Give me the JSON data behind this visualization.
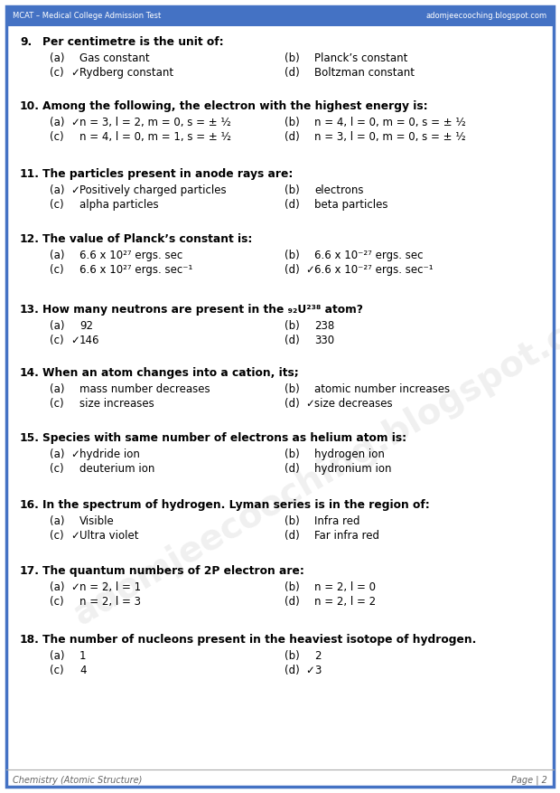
{
  "header_left": "MCAT – Medical College Admission Test",
  "header_right": "adomjeecooching.blogspot.com",
  "footer_left": "Chemistry (Atomic Structure)",
  "footer_right": "Page | 2",
  "bg_color": "#ffffff",
  "border_color": "#4472c4",
  "watermark": "adomjeecooching.blogspot.com",
  "questions": [
    {
      "num": "9.",
      "question": "Per centimetre is the unit of:",
      "options": [
        {
          "label": "(a)",
          "check": false,
          "text": "Gas constant"
        },
        {
          "label": "(b)",
          "check": false,
          "text": "Planck’s constant"
        },
        {
          "label": "(c)",
          "check": true,
          "text": "Rydberg constant"
        },
        {
          "label": "(d)",
          "check": false,
          "text": "Boltzman constant"
        }
      ]
    },
    {
      "num": "10.",
      "question": "Among the following, the electron with the highest energy is:",
      "options": [
        {
          "label": "(a)",
          "check": true,
          "text": "n = 3, l = 2, m = 0, s = ± ½"
        },
        {
          "label": "(b)",
          "check": false,
          "text": "n = 4, l = 0, m = 0, s = ± ½"
        },
        {
          "label": "(c)",
          "check": false,
          "text": "n = 4, l = 0, m = 1, s = ± ½"
        },
        {
          "label": "(d)",
          "check": false,
          "text": "n = 3, l = 0, m = 0, s = ± ½"
        }
      ]
    },
    {
      "num": "11.",
      "question": "The particles present in anode rays are:",
      "options": [
        {
          "label": "(a)",
          "check": true,
          "text": "Positively charged particles"
        },
        {
          "label": "(b)",
          "check": false,
          "text": "electrons"
        },
        {
          "label": "(c)",
          "check": false,
          "text": "alpha particles"
        },
        {
          "label": "(d)",
          "check": false,
          "text": "beta particles"
        }
      ]
    },
    {
      "num": "12.",
      "question": "The value of Planck’s constant is:",
      "options": [
        {
          "label": "(a)",
          "check": false,
          "text": "6.6 x 10²⁷ ergs. sec"
        },
        {
          "label": "(b)",
          "check": false,
          "text": "6.6 x 10⁻²⁷ ergs. sec"
        },
        {
          "label": "(c)",
          "check": false,
          "text": "6.6 x 10²⁷ ergs. sec⁻¹"
        },
        {
          "label": "(d)",
          "check": true,
          "text": "6.6 x 10⁻²⁷ ergs. sec⁻¹"
        }
      ]
    },
    {
      "num": "13.",
      "question": "How many neutrons are present in the ₉₂U²³⁸ atom?",
      "options": [
        {
          "label": "(a)",
          "check": false,
          "text": "92"
        },
        {
          "label": "(b)",
          "check": false,
          "text": "238"
        },
        {
          "label": "(c)",
          "check": true,
          "text": "146"
        },
        {
          "label": "(d)",
          "check": false,
          "text": "330"
        }
      ]
    },
    {
      "num": "14.",
      "question": "When an atom changes into a cation, its;",
      "options": [
        {
          "label": "(a)",
          "check": false,
          "text": "mass number decreases"
        },
        {
          "label": "(b)",
          "check": false,
          "text": "atomic number increases"
        },
        {
          "label": "(c)",
          "check": false,
          "text": "size increases"
        },
        {
          "label": "(d)",
          "check": true,
          "text": "size decreases"
        }
      ]
    },
    {
      "num": "15.",
      "question": "Species with same number of electrons as helium atom is:",
      "options": [
        {
          "label": "(a)",
          "check": true,
          "text": "hydride ion"
        },
        {
          "label": "(b)",
          "check": false,
          "text": "hydrogen ion"
        },
        {
          "label": "(c)",
          "check": false,
          "text": "deuterium ion"
        },
        {
          "label": "(d)",
          "check": false,
          "text": "hydronium ion"
        }
      ]
    },
    {
      "num": "16.",
      "question": "In the spectrum of hydrogen. Lyman series is in the region of:",
      "options": [
        {
          "label": "(a)",
          "check": false,
          "text": "Visible"
        },
        {
          "label": "(b)",
          "check": false,
          "text": "Infra red"
        },
        {
          "label": "(c)",
          "check": true,
          "text": "Ultra violet"
        },
        {
          "label": "(d)",
          "check": false,
          "text": "Far infra red"
        }
      ]
    },
    {
      "num": "17.",
      "question": "The quantum numbers of 2P electron are:",
      "options": [
        {
          "label": "(a)",
          "check": true,
          "text": "n = 2, l = 1"
        },
        {
          "label": "(b)",
          "check": false,
          "text": "n = 2, l = 0"
        },
        {
          "label": "(c)",
          "check": false,
          "text": "n = 2, l = 3"
        },
        {
          "label": "(d)",
          "check": false,
          "text": "n = 2, l = 2"
        }
      ]
    },
    {
      "num": "18.",
      "question": "The number of nucleons present in the heaviest isotope of hydrogen.",
      "options": [
        {
          "label": "(a)",
          "check": false,
          "text": "1"
        },
        {
          "label": "(b)",
          "check": false,
          "text": "2"
        },
        {
          "label": "(c)",
          "check": false,
          "text": "4"
        },
        {
          "label": "(d)",
          "check": true,
          "text": "3"
        }
      ]
    }
  ]
}
